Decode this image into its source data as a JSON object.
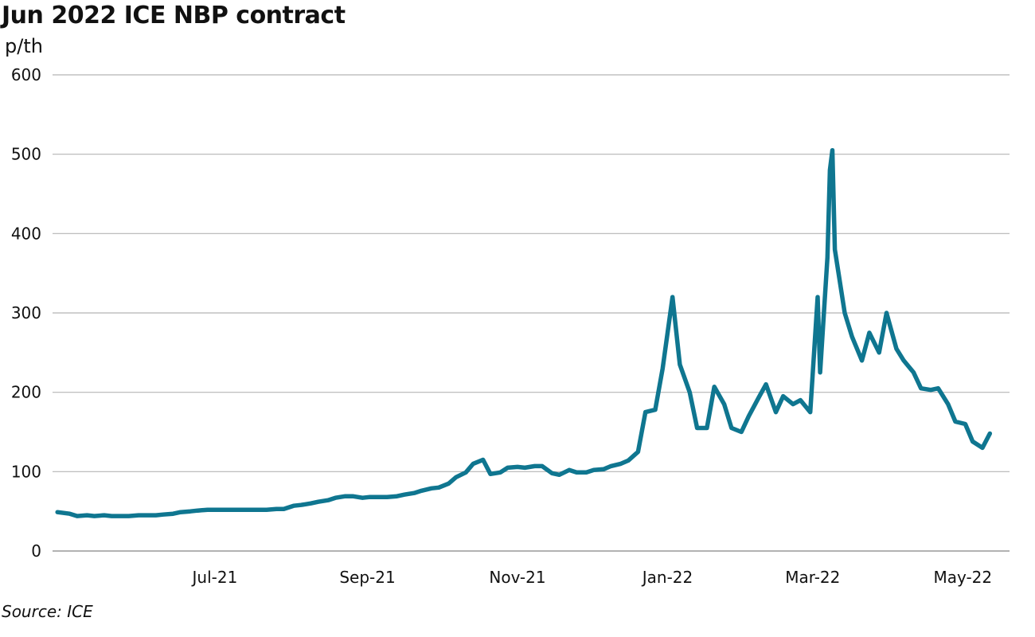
{
  "title": "Jun 2022 ICE NBP contract",
  "unit": "p/th",
  "source": "Source: ICE",
  "chart_data": {
    "type": "line",
    "title": "Jun 2022 ICE NBP contract",
    "ylabel": "p/th",
    "xlabel": "",
    "ylim": [
      0,
      600
    ],
    "yticks": [
      0,
      100,
      200,
      300,
      400,
      500,
      600
    ],
    "xlim": [
      "2021-04-26",
      "2022-05-20"
    ],
    "xticks": [
      {
        "label": "Jul-21",
        "date": "2021-07-01"
      },
      {
        "label": "Sep-21",
        "date": "2021-09-01"
      },
      {
        "label": "Nov-21",
        "date": "2021-11-01"
      },
      {
        "label": "Jan-22",
        "date": "2022-01-01"
      },
      {
        "label": "Mar-22",
        "date": "2022-03-01"
      },
      {
        "label": "May-22",
        "date": "2022-05-01"
      }
    ],
    "grid": true,
    "line_color": "#0f7690",
    "series": [
      {
        "name": "",
        "points": [
          [
            "2021-04-28",
            49
          ],
          [
            "2021-05-03",
            47
          ],
          [
            "2021-05-06",
            44
          ],
          [
            "2021-05-10",
            45
          ],
          [
            "2021-05-13",
            44
          ],
          [
            "2021-05-17",
            45
          ],
          [
            "2021-05-20",
            44
          ],
          [
            "2021-05-24",
            44
          ],
          [
            "2021-05-27",
            44
          ],
          [
            "2021-05-31",
            45
          ],
          [
            "2021-06-03",
            45
          ],
          [
            "2021-06-07",
            45
          ],
          [
            "2021-06-10",
            46
          ],
          [
            "2021-06-14",
            47
          ],
          [
            "2021-06-17",
            49
          ],
          [
            "2021-06-21",
            50
          ],
          [
            "2021-06-24",
            51
          ],
          [
            "2021-06-28",
            52
          ],
          [
            "2021-07-01",
            52
          ],
          [
            "2021-07-05",
            52
          ],
          [
            "2021-07-08",
            52
          ],
          [
            "2021-07-12",
            52
          ],
          [
            "2021-07-15",
            52
          ],
          [
            "2021-07-19",
            52
          ],
          [
            "2021-07-22",
            52
          ],
          [
            "2021-07-26",
            53
          ],
          [
            "2021-07-29",
            53
          ],
          [
            "2021-08-02",
            57
          ],
          [
            "2021-08-05",
            58
          ],
          [
            "2021-08-09",
            60
          ],
          [
            "2021-08-12",
            62
          ],
          [
            "2021-08-16",
            64
          ],
          [
            "2021-08-19",
            67
          ],
          [
            "2021-08-23",
            69
          ],
          [
            "2021-08-26",
            69
          ],
          [
            "2021-08-30",
            67
          ],
          [
            "2021-09-02",
            68
          ],
          [
            "2021-09-06",
            68
          ],
          [
            "2021-09-09",
            68
          ],
          [
            "2021-09-13",
            69
          ],
          [
            "2021-09-16",
            71
          ],
          [
            "2021-09-20",
            73
          ],
          [
            "2021-09-23",
            76
          ],
          [
            "2021-09-27",
            79
          ],
          [
            "2021-09-30",
            80
          ],
          [
            "2021-10-04",
            85
          ],
          [
            "2021-10-07",
            93
          ],
          [
            "2021-10-11",
            99
          ],
          [
            "2021-10-14",
            110
          ],
          [
            "2021-10-18",
            115
          ],
          [
            "2021-10-21",
            97
          ],
          [
            "2021-10-25",
            99
          ],
          [
            "2021-10-28",
            105
          ],
          [
            "2021-11-01",
            106
          ],
          [
            "2021-11-04",
            105
          ],
          [
            "2021-11-08",
            107
          ],
          [
            "2021-11-11",
            107
          ],
          [
            "2021-11-15",
            98
          ],
          [
            "2021-11-18",
            96
          ],
          [
            "2021-11-22",
            102
          ],
          [
            "2021-11-25",
            99
          ],
          [
            "2021-11-29",
            99
          ],
          [
            "2021-12-02",
            102
          ],
          [
            "2021-12-06",
            103
          ],
          [
            "2021-12-09",
            107
          ],
          [
            "2021-12-13",
            110
          ],
          [
            "2021-12-16",
            114
          ],
          [
            "2021-12-20",
            125
          ],
          [
            "2021-12-23",
            175
          ],
          [
            "2021-12-27",
            178
          ],
          [
            "2021-12-30",
            230
          ],
          [
            "2022-01-03",
            320
          ],
          [
            "2022-01-06",
            235
          ],
          [
            "2022-01-10",
            200
          ],
          [
            "2022-01-13",
            155
          ],
          [
            "2022-01-17",
            155
          ],
          [
            "2022-01-20",
            207
          ],
          [
            "2022-01-24",
            185
          ],
          [
            "2022-01-27",
            155
          ],
          [
            "2022-01-31",
            150
          ],
          [
            "2022-02-03",
            170
          ],
          [
            "2022-02-07",
            193
          ],
          [
            "2022-02-10",
            210
          ],
          [
            "2022-02-14",
            175
          ],
          [
            "2022-02-17",
            195
          ],
          [
            "2022-02-21",
            185
          ],
          [
            "2022-02-24",
            190
          ],
          [
            "2022-02-28",
            175
          ],
          [
            "2022-03-03",
            320
          ],
          [
            "2022-03-04",
            225
          ],
          [
            "2022-03-07",
            370
          ],
          [
            "2022-03-08",
            480
          ],
          [
            "2022-03-09",
            505
          ],
          [
            "2022-03-10",
            380
          ],
          [
            "2022-03-14",
            300
          ],
          [
            "2022-03-17",
            270
          ],
          [
            "2022-03-21",
            240
          ],
          [
            "2022-03-24",
            275
          ],
          [
            "2022-03-28",
            250
          ],
          [
            "2022-03-31",
            300
          ],
          [
            "2022-04-04",
            255
          ],
          [
            "2022-04-07",
            240
          ],
          [
            "2022-04-11",
            225
          ],
          [
            "2022-04-14",
            205
          ],
          [
            "2022-04-18",
            203
          ],
          [
            "2022-04-21",
            205
          ],
          [
            "2022-04-25",
            185
          ],
          [
            "2022-04-28",
            163
          ],
          [
            "2022-05-02",
            160
          ],
          [
            "2022-05-05",
            138
          ],
          [
            "2022-05-09",
            130
          ],
          [
            "2022-05-12",
            148
          ]
        ]
      }
    ]
  }
}
